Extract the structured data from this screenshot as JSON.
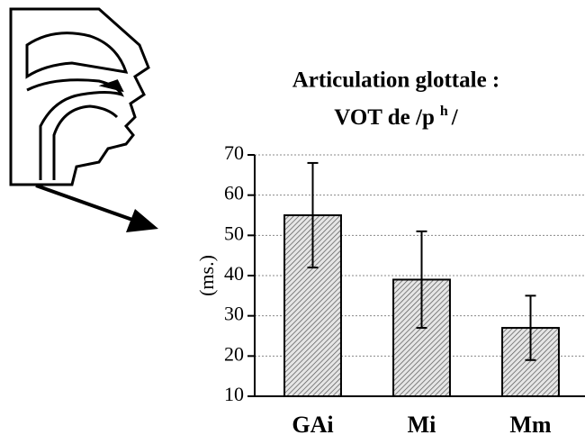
{
  "chart_data": {
    "type": "bar",
    "title": "Articulation glottale :",
    "subtitle": [
      "VOT de /p",
      "h",
      "/"
    ],
    "ylabel": "(ms.)",
    "categories": [
      "GAi",
      "Mi",
      "Mm"
    ],
    "values": [
      55,
      39,
      27
    ],
    "errors": [
      13,
      12,
      8
    ],
    "color": "#d9d9d9",
    "ylim": [
      10,
      70
    ],
    "yticks": [
      10,
      20,
      30,
      40,
      50,
      60,
      70
    ],
    "grid": true
  }
}
